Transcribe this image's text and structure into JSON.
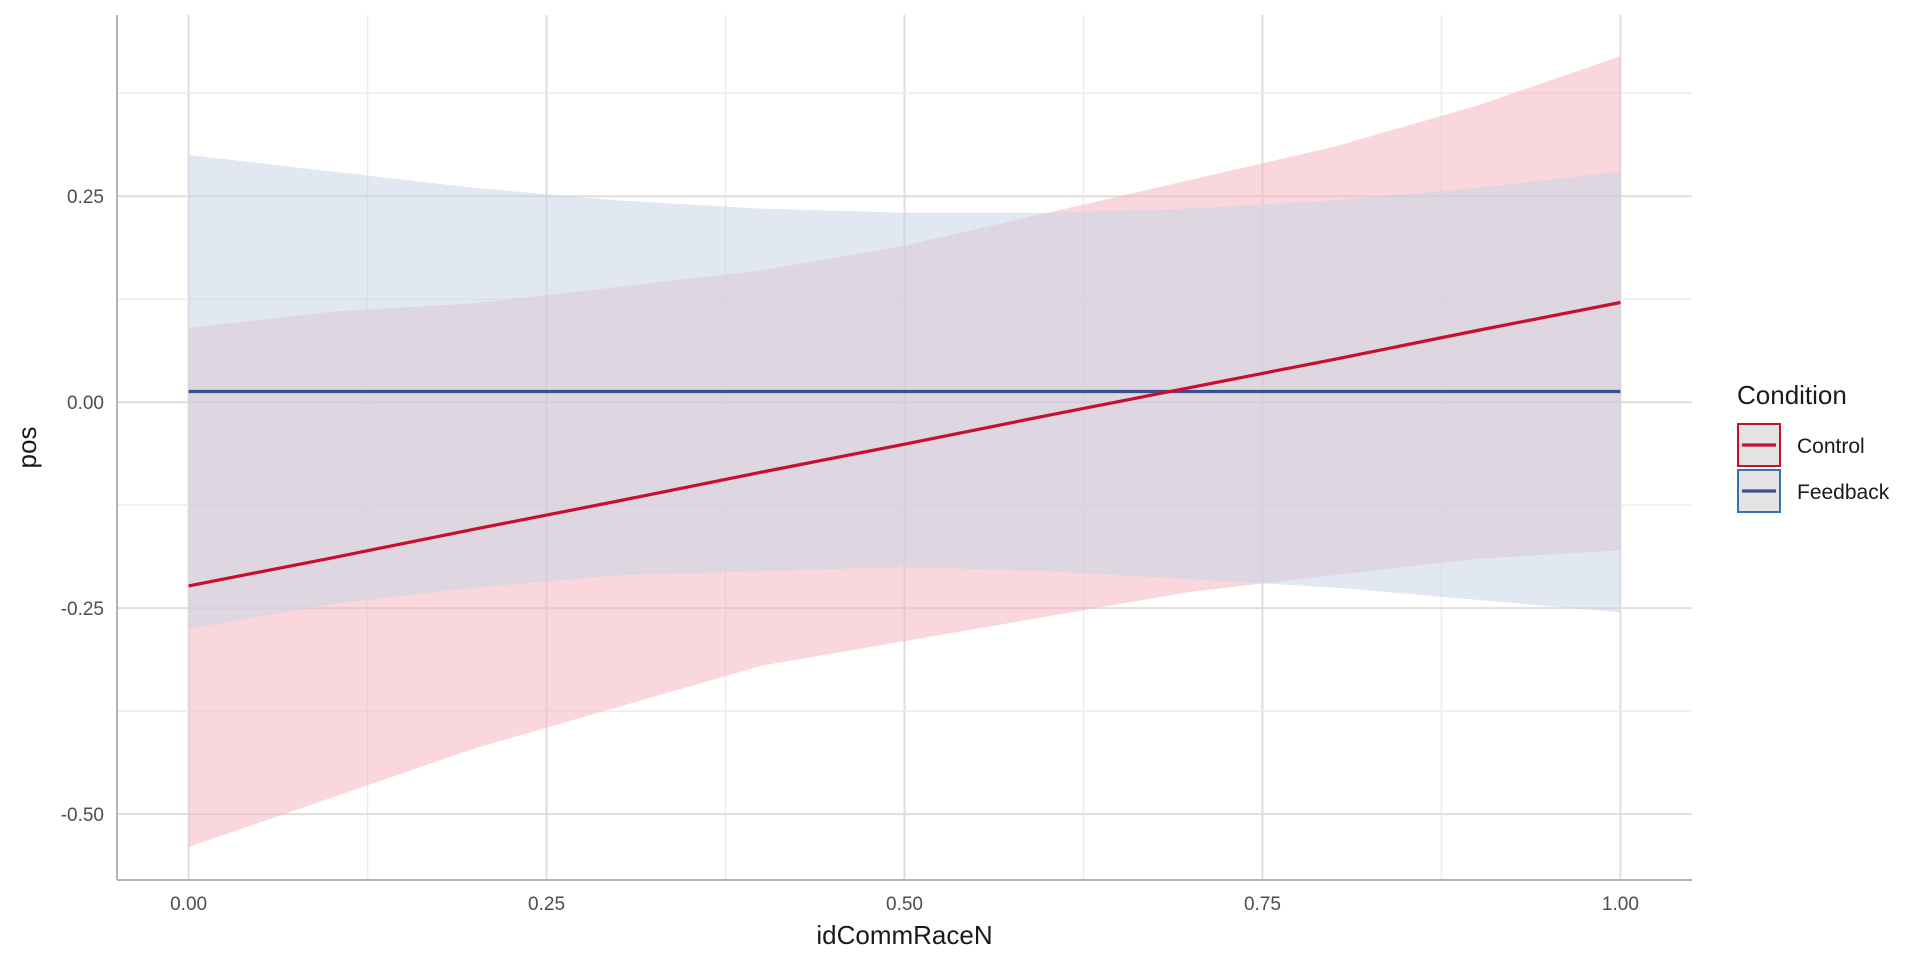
{
  "chart_data": {
    "type": "line",
    "title": "",
    "xlabel": "idCommRaceN",
    "ylabel": "pos",
    "xlim": [
      -0.05,
      1.05
    ],
    "ylim": [
      -0.58,
      0.47
    ],
    "x_ticks": [
      0.0,
      0.25,
      0.5,
      0.75,
      1.0
    ],
    "x_tick_labels": [
      "0.00",
      "0.25",
      "0.50",
      "0.75",
      "1.00"
    ],
    "y_ticks": [
      -0.5,
      -0.25,
      0.0,
      0.25
    ],
    "y_tick_labels": [
      "-0.50",
      "-0.25",
      "0.00",
      "0.25"
    ],
    "grid": true,
    "legend": {
      "title": "Condition",
      "position": "right"
    },
    "series": [
      {
        "name": "Control",
        "color": "#c8102e",
        "band_color": "#f4b6bf",
        "x": [
          0.0,
          0.1,
          0.2,
          0.3,
          0.4,
          0.5,
          0.6,
          0.7,
          0.8,
          0.9,
          1.0
        ],
        "y": [
          -0.223,
          -0.189,
          -0.154,
          -0.12,
          -0.085,
          -0.051,
          -0.016,
          0.018,
          0.052,
          0.087,
          0.121
        ],
        "lower": [
          -0.54,
          -0.48,
          -0.42,
          -0.37,
          -0.32,
          -0.29,
          -0.26,
          -0.23,
          -0.21,
          -0.19,
          -0.18
        ],
        "upper": [
          0.09,
          0.11,
          0.12,
          0.14,
          0.16,
          0.19,
          0.23,
          0.27,
          0.31,
          0.36,
          0.42
        ]
      },
      {
        "name": "Feedback",
        "color": "#3b4f8f",
        "band_color": "#c9d5e6",
        "x": [
          0.0,
          0.1,
          0.2,
          0.3,
          0.4,
          0.5,
          0.6,
          0.7,
          0.8,
          0.9,
          1.0
        ],
        "y": [
          0.013,
          0.013,
          0.013,
          0.013,
          0.013,
          0.013,
          0.013,
          0.013,
          0.013,
          0.013,
          0.013
        ],
        "lower": [
          -0.275,
          -0.245,
          -0.225,
          -0.21,
          -0.205,
          -0.2,
          -0.205,
          -0.215,
          -0.225,
          -0.24,
          -0.255
        ],
        "upper": [
          0.3,
          0.28,
          0.26,
          0.245,
          0.235,
          0.23,
          0.23,
          0.235,
          0.245,
          0.26,
          0.28
        ]
      }
    ]
  }
}
